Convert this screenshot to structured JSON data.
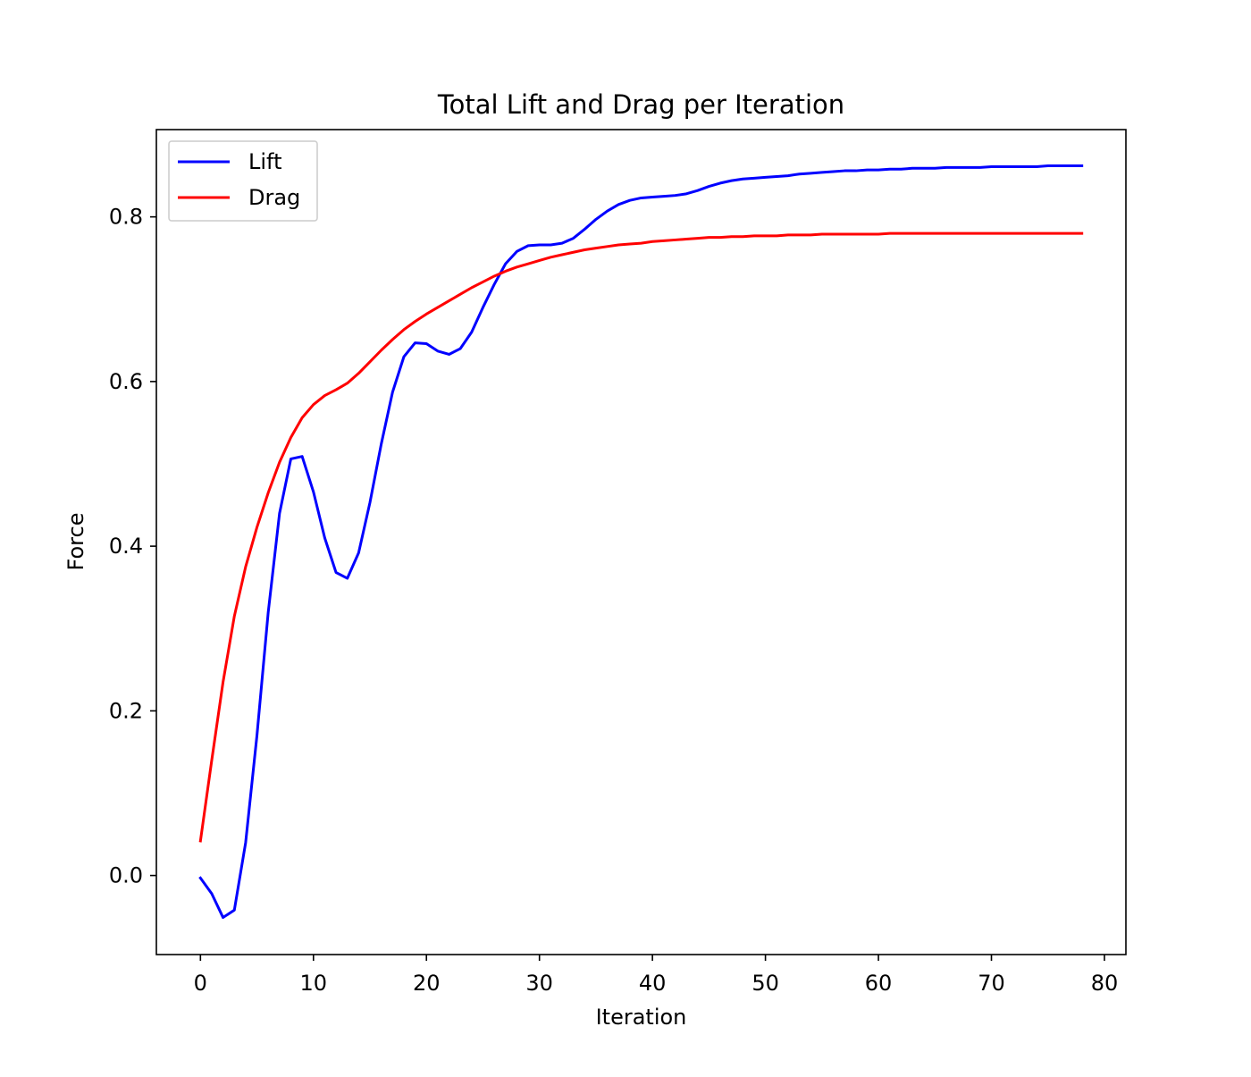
{
  "chart_data": {
    "type": "line",
    "title": "Total Lift and Drag per Iteration",
    "xlabel": "Iteration",
    "ylabel": "Force",
    "xlim": [
      -3.9,
      81.9
    ],
    "ylim": [
      -0.096,
      0.906
    ],
    "xticks": [
      0,
      10,
      20,
      30,
      40,
      50,
      60,
      70,
      80
    ],
    "yticks": [
      0.0,
      0.2,
      0.4,
      0.6,
      0.8
    ],
    "xtick_labels": [
      "0",
      "10",
      "20",
      "30",
      "40",
      "50",
      "60",
      "70",
      "80"
    ],
    "ytick_labels": [
      "0.0",
      "0.2",
      "0.4",
      "0.6",
      "0.8"
    ],
    "grid": false,
    "legend": {
      "position": "upper left"
    },
    "x": [
      0,
      1,
      2,
      3,
      4,
      5,
      6,
      7,
      8,
      9,
      10,
      11,
      12,
      13,
      14,
      15,
      16,
      17,
      18,
      19,
      20,
      21,
      22,
      23,
      24,
      25,
      26,
      27,
      28,
      29,
      30,
      31,
      32,
      33,
      34,
      35,
      36,
      37,
      38,
      39,
      40,
      41,
      42,
      43,
      44,
      45,
      46,
      47,
      48,
      49,
      50,
      51,
      52,
      53,
      54,
      55,
      56,
      57,
      58,
      59,
      60,
      61,
      62,
      63,
      64,
      65,
      66,
      67,
      68,
      69,
      70,
      71,
      72,
      73,
      74,
      75,
      76,
      77,
      78
    ],
    "series": [
      {
        "name": "Lift",
        "color": "#0000ff",
        "values": [
          -0.003,
          -0.022,
          -0.051,
          -0.042,
          0.04,
          0.17,
          0.32,
          0.44,
          0.506,
          0.509,
          0.466,
          0.41,
          0.368,
          0.361,
          0.392,
          0.453,
          0.524,
          0.587,
          0.63,
          0.647,
          0.646,
          0.637,
          0.633,
          0.64,
          0.66,
          0.69,
          0.718,
          0.743,
          0.758,
          0.765,
          0.766,
          0.766,
          0.768,
          0.774,
          0.785,
          0.797,
          0.807,
          0.815,
          0.82,
          0.823,
          0.824,
          0.825,
          0.826,
          0.828,
          0.832,
          0.837,
          0.841,
          0.844,
          0.846,
          0.847,
          0.848,
          0.849,
          0.85,
          0.852,
          0.853,
          0.854,
          0.855,
          0.856,
          0.856,
          0.857,
          0.857,
          0.858,
          0.858,
          0.859,
          0.859,
          0.859,
          0.86,
          0.86,
          0.86,
          0.86,
          0.861,
          0.861,
          0.861,
          0.861,
          0.861,
          0.862,
          0.862,
          0.862,
          0.862
        ]
      },
      {
        "name": "Drag",
        "color": "#ff0000",
        "values": [
          0.042,
          0.14,
          0.235,
          0.315,
          0.375,
          0.423,
          0.465,
          0.502,
          0.532,
          0.556,
          0.572,
          0.583,
          0.59,
          0.598,
          0.61,
          0.624,
          0.638,
          0.651,
          0.663,
          0.673,
          0.682,
          0.69,
          0.698,
          0.706,
          0.714,
          0.721,
          0.728,
          0.734,
          0.739,
          0.743,
          0.747,
          0.751,
          0.754,
          0.757,
          0.76,
          0.762,
          0.764,
          0.766,
          0.767,
          0.768,
          0.77,
          0.771,
          0.772,
          0.773,
          0.774,
          0.775,
          0.775,
          0.776,
          0.776,
          0.777,
          0.777,
          0.777,
          0.778,
          0.778,
          0.778,
          0.779,
          0.779,
          0.779,
          0.779,
          0.779,
          0.779,
          0.78,
          0.78,
          0.78,
          0.78,
          0.78,
          0.78,
          0.78,
          0.78,
          0.78,
          0.78,
          0.78,
          0.78,
          0.78,
          0.78,
          0.78,
          0.78,
          0.78,
          0.78
        ]
      }
    ]
  }
}
